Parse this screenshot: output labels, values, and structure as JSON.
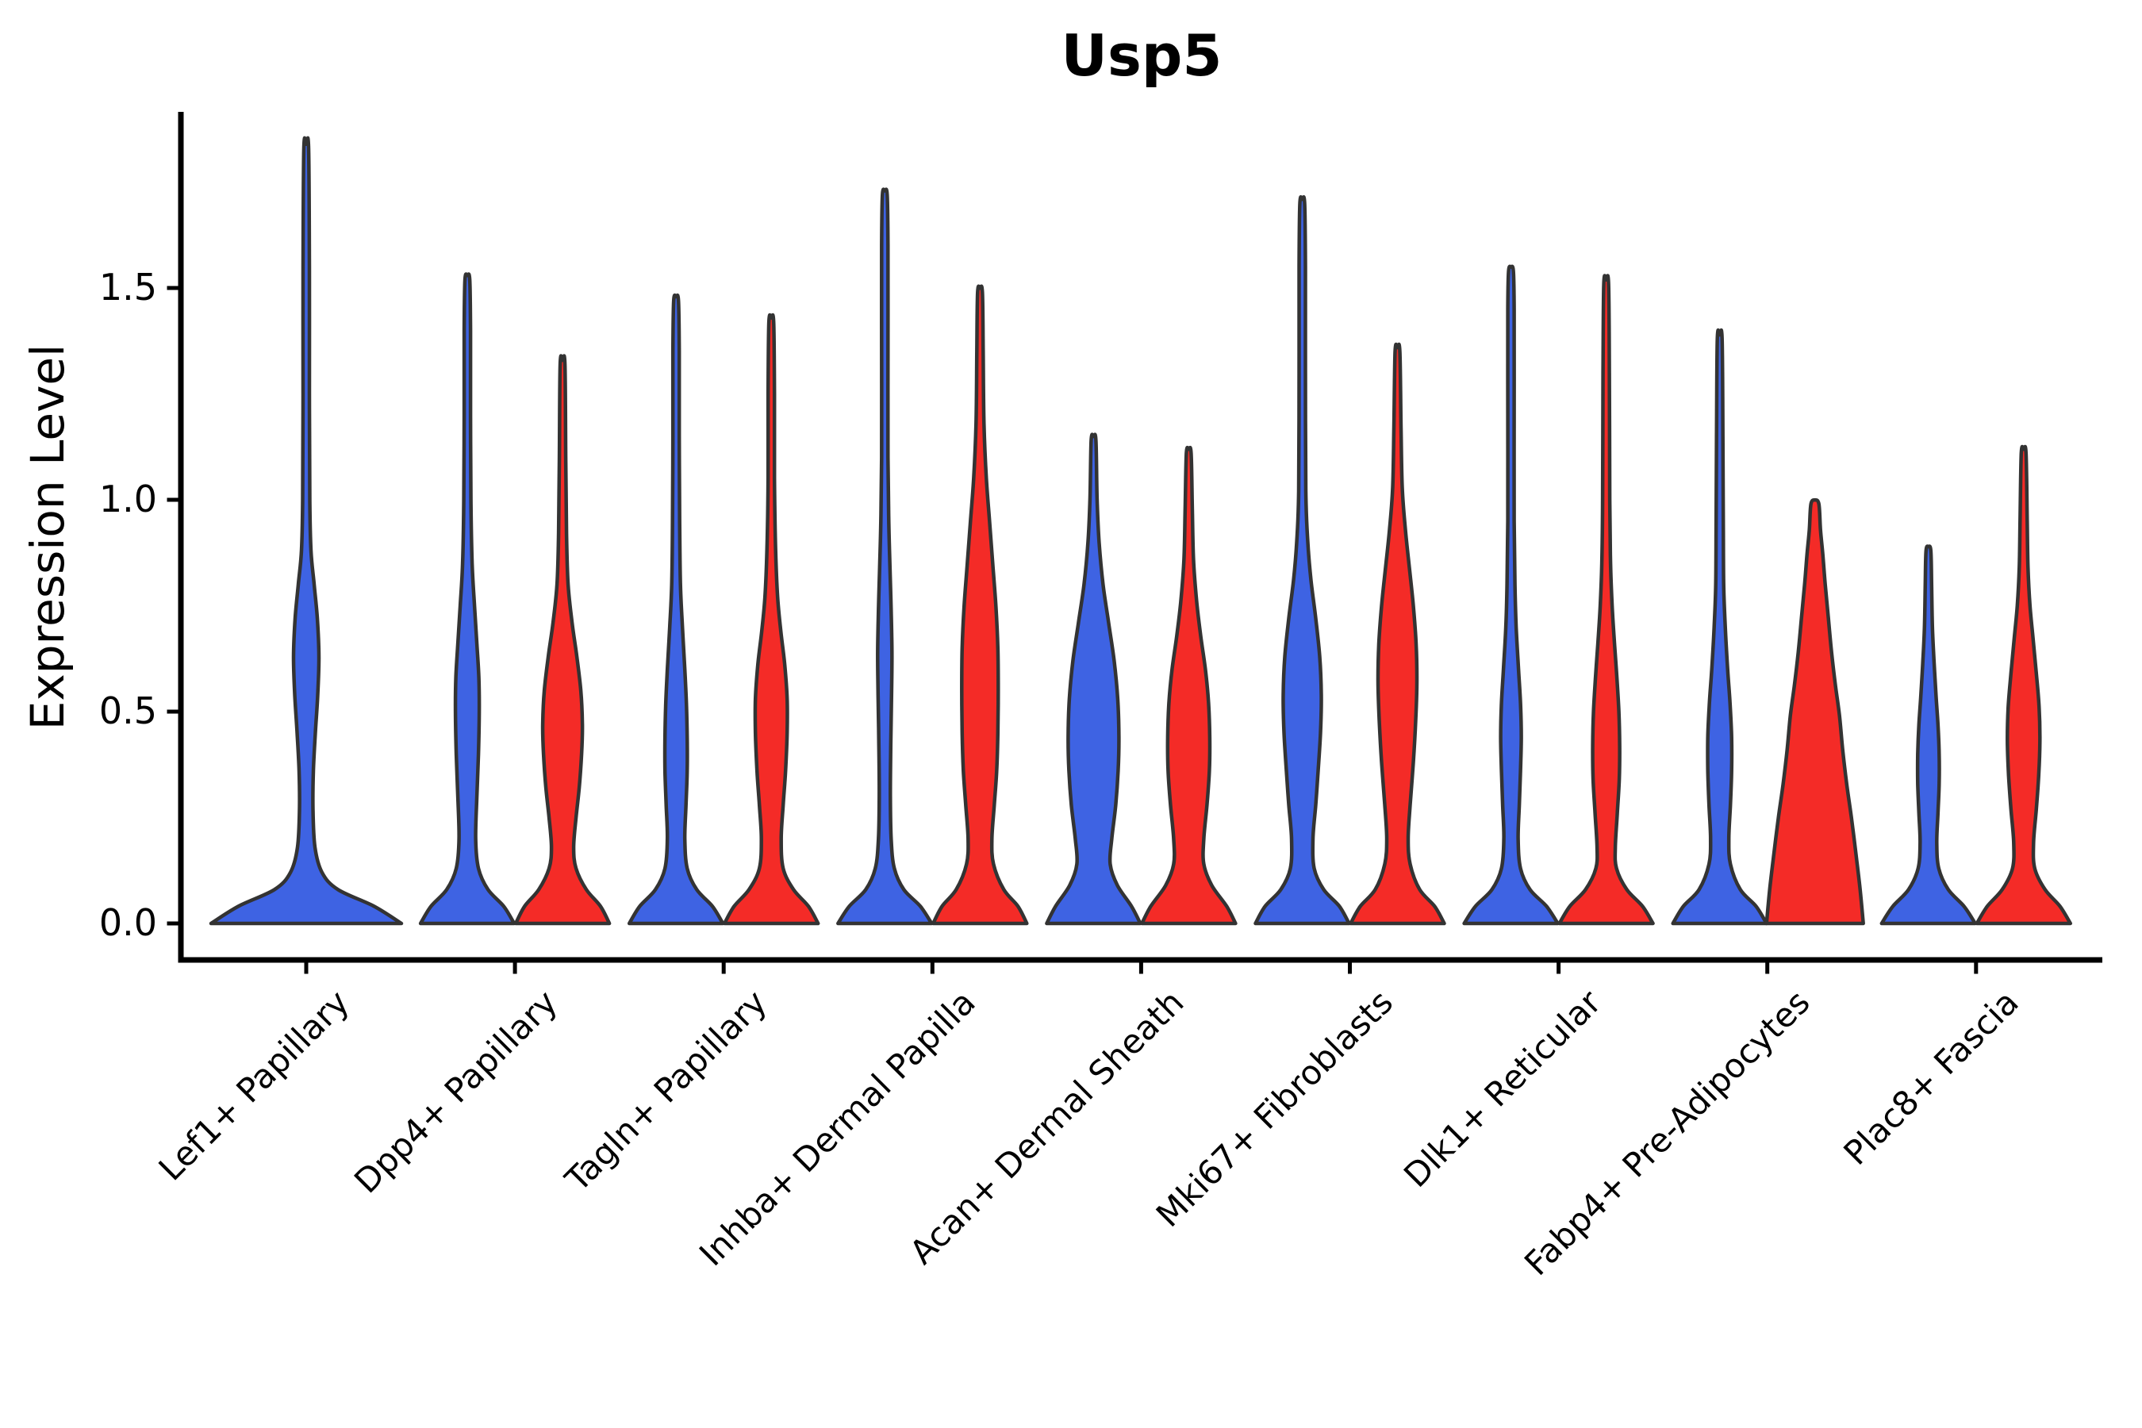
{
  "chart_data": {
    "type": "violin",
    "title": "Usp5",
    "ylabel": "Expression Level",
    "xlabel": "",
    "yticks": [
      "0.0",
      "0.5",
      "1.0",
      "1.5"
    ],
    "ylim": [
      -0.09,
      1.92
    ],
    "grid": false,
    "legend": "none",
    "categories": [
      "Lef1+ Papillary",
      "Dpp4+ Papillary",
      "Tagln+ Papillary",
      "Inhba+ Dermal Papilla",
      "Acan+ Dermal Sheath",
      "Mki67+ Fibroblasts",
      "Dlk1+ Reticular",
      "Fabp4+ Pre-Adipocytes",
      "Plac8+ Fascia"
    ],
    "series": [
      {
        "key": "blue",
        "color": "#3E63E3"
      },
      {
        "key": "red",
        "color": "#F42B27"
      }
    ],
    "outline_color": "#333333",
    "axis_color": "#000000",
    "violins": [
      {
        "category": "Lef1+ Papillary",
        "series": "blue",
        "side": "center",
        "max_expression": 1.83,
        "profile": [
          [
            0,
            120
          ],
          [
            0.04,
            86
          ],
          [
            0.08,
            40
          ],
          [
            0.12,
            20
          ],
          [
            0.18,
            11
          ],
          [
            0.27,
            8.5
          ],
          [
            0.36,
            9
          ],
          [
            0.45,
            11.5
          ],
          [
            0.54,
            14.5
          ],
          [
            0.63,
            16
          ],
          [
            0.72,
            14
          ],
          [
            0.8,
            10
          ],
          [
            0.88,
            6
          ],
          [
            1.0,
            4.5
          ],
          [
            1.25,
            4
          ],
          [
            1.55,
            4
          ],
          [
            1.83,
            3
          ]
        ]
      },
      {
        "category": "Dpp4+ Papillary",
        "series": "blue",
        "side": "left",
        "max_expression": 1.52,
        "profile": [
          [
            0,
            59
          ],
          [
            0.04,
            46
          ],
          [
            0.08,
            26
          ],
          [
            0.13,
            14
          ],
          [
            0.2,
            10.5
          ],
          [
            0.3,
            12
          ],
          [
            0.4,
            14
          ],
          [
            0.5,
            15
          ],
          [
            0.58,
            14.5
          ],
          [
            0.66,
            12
          ],
          [
            0.75,
            9
          ],
          [
            0.85,
            6
          ],
          [
            1.0,
            4.5
          ],
          [
            1.2,
            4
          ],
          [
            1.4,
            4
          ],
          [
            1.52,
            3
          ]
        ]
      },
      {
        "category": "Dpp4+ Papillary",
        "series": "red",
        "side": "right",
        "max_expression": 1.32,
        "profile": [
          [
            0,
            59
          ],
          [
            0.04,
            48
          ],
          [
            0.08,
            30
          ],
          [
            0.13,
            17
          ],
          [
            0.18,
            14
          ],
          [
            0.25,
            17
          ],
          [
            0.32,
            21
          ],
          [
            0.4,
            24
          ],
          [
            0.47,
            25
          ],
          [
            0.55,
            23
          ],
          [
            0.63,
            18
          ],
          [
            0.71,
            12
          ],
          [
            0.8,
            7
          ],
          [
            0.92,
            5
          ],
          [
            1.1,
            4
          ],
          [
            1.32,
            3
          ]
        ]
      },
      {
        "category": "Tagln+ Papillary",
        "series": "blue",
        "side": "left",
        "max_expression": 1.47,
        "profile": [
          [
            0,
            59
          ],
          [
            0.04,
            46
          ],
          [
            0.08,
            26
          ],
          [
            0.13,
            14
          ],
          [
            0.2,
            11
          ],
          [
            0.28,
            12.5
          ],
          [
            0.36,
            14
          ],
          [
            0.44,
            14
          ],
          [
            0.52,
            13
          ],
          [
            0.6,
            11
          ],
          [
            0.7,
            8
          ],
          [
            0.8,
            5.5
          ],
          [
            0.95,
            4.5
          ],
          [
            1.15,
            4
          ],
          [
            1.35,
            4
          ],
          [
            1.47,
            3
          ]
        ]
      },
      {
        "category": "Tagln+ Papillary",
        "series": "red",
        "side": "right",
        "max_expression": 1.42,
        "profile": [
          [
            0,
            59
          ],
          [
            0.04,
            47
          ],
          [
            0.08,
            28
          ],
          [
            0.13,
            15
          ],
          [
            0.2,
            12.5
          ],
          [
            0.28,
            15
          ],
          [
            0.36,
            18
          ],
          [
            0.45,
            20
          ],
          [
            0.53,
            20
          ],
          [
            0.61,
            17
          ],
          [
            0.69,
            12
          ],
          [
            0.77,
            8
          ],
          [
            0.88,
            5.5
          ],
          [
            1.05,
            4
          ],
          [
            1.25,
            4
          ],
          [
            1.42,
            3
          ]
        ]
      },
      {
        "category": "Inhba+ Dermal Papilla",
        "series": "blue",
        "side": "left",
        "max_expression": 1.72,
        "profile": [
          [
            0,
            59
          ],
          [
            0.04,
            45
          ],
          [
            0.08,
            24
          ],
          [
            0.13,
            12
          ],
          [
            0.2,
            8
          ],
          [
            0.3,
            7
          ],
          [
            0.42,
            7.5
          ],
          [
            0.54,
            8.5
          ],
          [
            0.64,
            9
          ],
          [
            0.74,
            8
          ],
          [
            0.84,
            6.5
          ],
          [
            0.95,
            5
          ],
          [
            1.1,
            4
          ],
          [
            1.35,
            4
          ],
          [
            1.6,
            4
          ],
          [
            1.72,
            3
          ]
        ]
      },
      {
        "category": "Inhba+ Dermal Papilla",
        "series": "red",
        "side": "right",
        "max_expression": 1.49,
        "profile": [
          [
            0,
            59
          ],
          [
            0.04,
            48
          ],
          [
            0.08,
            30
          ],
          [
            0.14,
            17
          ],
          [
            0.2,
            15
          ],
          [
            0.28,
            18
          ],
          [
            0.36,
            21
          ],
          [
            0.45,
            22.5
          ],
          [
            0.55,
            23
          ],
          [
            0.65,
            22.5
          ],
          [
            0.75,
            20
          ],
          [
            0.85,
            16
          ],
          [
            0.95,
            12
          ],
          [
            1.05,
            8
          ],
          [
            1.18,
            5
          ],
          [
            1.35,
            4
          ],
          [
            1.49,
            3
          ]
        ]
      },
      {
        "category": "Acan+ Dermal Sheath",
        "series": "blue",
        "side": "left",
        "max_expression": 1.14,
        "profile": [
          [
            0,
            59
          ],
          [
            0.04,
            48
          ],
          [
            0.09,
            30
          ],
          [
            0.14,
            21
          ],
          [
            0.2,
            23
          ],
          [
            0.28,
            28
          ],
          [
            0.36,
            31
          ],
          [
            0.44,
            32
          ],
          [
            0.53,
            30.5
          ],
          [
            0.62,
            26
          ],
          [
            0.71,
            19
          ],
          [
            0.8,
            12
          ],
          [
            0.9,
            7
          ],
          [
            1.0,
            4.5
          ],
          [
            1.14,
            3
          ]
        ]
      },
      {
        "category": "Acan+ Dermal Sheath",
        "series": "red",
        "side": "right",
        "max_expression": 1.11,
        "profile": [
          [
            0,
            59
          ],
          [
            0.04,
            48
          ],
          [
            0.09,
            29
          ],
          [
            0.14,
            19
          ],
          [
            0.2,
            19
          ],
          [
            0.28,
            23
          ],
          [
            0.36,
            26
          ],
          [
            0.44,
            26.5
          ],
          [
            0.52,
            25
          ],
          [
            0.6,
            21
          ],
          [
            0.68,
            15
          ],
          [
            0.76,
            10
          ],
          [
            0.86,
            6
          ],
          [
            0.98,
            4.5
          ],
          [
            1.11,
            3
          ]
        ]
      },
      {
        "category": "Mki67+ Fibroblasts",
        "series": "blue",
        "side": "left",
        "max_expression": 1.7,
        "profile": [
          [
            0,
            59
          ],
          [
            0.04,
            47
          ],
          [
            0.08,
            27
          ],
          [
            0.13,
            15
          ],
          [
            0.2,
            13.5
          ],
          [
            0.28,
            17
          ],
          [
            0.36,
            20
          ],
          [
            0.45,
            23
          ],
          [
            0.54,
            24
          ],
          [
            0.63,
            22
          ],
          [
            0.72,
            17
          ],
          [
            0.81,
            11
          ],
          [
            0.9,
            7
          ],
          [
            1.02,
            4.5
          ],
          [
            1.3,
            4
          ],
          [
            1.55,
            4
          ],
          [
            1.7,
            3
          ]
        ]
      },
      {
        "category": "Mki67+ Fibroblasts",
        "series": "red",
        "side": "right",
        "max_expression": 1.35,
        "profile": [
          [
            0,
            59
          ],
          [
            0.04,
            47
          ],
          [
            0.08,
            28
          ],
          [
            0.14,
            16
          ],
          [
            0.2,
            13.5
          ],
          [
            0.28,
            16
          ],
          [
            0.38,
            20
          ],
          [
            0.48,
            23
          ],
          [
            0.57,
            24.5
          ],
          [
            0.66,
            23.5
          ],
          [
            0.75,
            20
          ],
          [
            0.84,
            15
          ],
          [
            0.93,
            10
          ],
          [
            1.03,
            6
          ],
          [
            1.17,
            4.5
          ],
          [
            1.35,
            3
          ]
        ]
      },
      {
        "category": "Dlk1+ Reticular",
        "series": "blue",
        "side": "left",
        "max_expression": 1.54,
        "profile": [
          [
            0,
            59
          ],
          [
            0.04,
            45
          ],
          [
            0.08,
            24
          ],
          [
            0.13,
            12
          ],
          [
            0.2,
            9
          ],
          [
            0.28,
            10.5
          ],
          [
            0.36,
            12
          ],
          [
            0.44,
            13
          ],
          [
            0.52,
            12
          ],
          [
            0.6,
            9.5
          ],
          [
            0.7,
            6.5
          ],
          [
            0.8,
            5
          ],
          [
            0.95,
            4
          ],
          [
            1.2,
            4
          ],
          [
            1.45,
            4
          ],
          [
            1.54,
            3
          ]
        ]
      },
      {
        "category": "Dlk1+ Reticular",
        "series": "red",
        "side": "right",
        "max_expression": 1.51,
        "profile": [
          [
            0,
            59
          ],
          [
            0.04,
            46
          ],
          [
            0.08,
            26
          ],
          [
            0.13,
            13
          ],
          [
            0.18,
            11.5
          ],
          [
            0.26,
            14
          ],
          [
            0.34,
            16.5
          ],
          [
            0.42,
            17
          ],
          [
            0.5,
            16
          ],
          [
            0.58,
            13.5
          ],
          [
            0.66,
            10.5
          ],
          [
            0.75,
            7.5
          ],
          [
            0.85,
            5.5
          ],
          [
            1.0,
            4.5
          ],
          [
            1.3,
            4
          ],
          [
            1.51,
            3
          ]
        ]
      },
      {
        "category": "Fabp4+ Pre-Adipocytes",
        "series": "blue",
        "side": "left",
        "max_expression": 1.38,
        "profile": [
          [
            0,
            59
          ],
          [
            0.04,
            46
          ],
          [
            0.08,
            26
          ],
          [
            0.14,
            13.5
          ],
          [
            0.2,
            11.5
          ],
          [
            0.28,
            13.5
          ],
          [
            0.36,
            15
          ],
          [
            0.44,
            15
          ],
          [
            0.52,
            13
          ],
          [
            0.6,
            10
          ],
          [
            0.7,
            7
          ],
          [
            0.8,
            5
          ],
          [
            0.95,
            4.5
          ],
          [
            1.15,
            4
          ],
          [
            1.38,
            3
          ]
        ]
      },
      {
        "category": "Fabp4+ Pre-Adipocytes",
        "series": "red",
        "side": "right",
        "max_expression": 0.99,
        "profile": [
          [
            0,
            61
          ],
          [
            0.08,
            57
          ],
          [
            0.16,
            52
          ],
          [
            0.25,
            46
          ],
          [
            0.33,
            40
          ],
          [
            0.41,
            35
          ],
          [
            0.49,
            31
          ],
          [
            0.56,
            26
          ],
          [
            0.64,
            21
          ],
          [
            0.72,
            17
          ],
          [
            0.8,
            13
          ],
          [
            0.87,
            10
          ],
          [
            0.93,
            7
          ],
          [
            0.99,
            5
          ]
        ]
      },
      {
        "category": "Plac8+ Fascia",
        "series": "blue",
        "side": "left",
        "max_expression": 0.88,
        "profile": [
          [
            0,
            59
          ],
          [
            0.04,
            45
          ],
          [
            0.08,
            25
          ],
          [
            0.13,
            13
          ],
          [
            0.19,
            10.5
          ],
          [
            0.26,
            12
          ],
          [
            0.33,
            13.5
          ],
          [
            0.4,
            13.5
          ],
          [
            0.47,
            12
          ],
          [
            0.54,
            9.5
          ],
          [
            0.62,
            7
          ],
          [
            0.7,
            5
          ],
          [
            0.8,
            4
          ],
          [
            0.88,
            3
          ]
        ]
      },
      {
        "category": "Plac8+ Fascia",
        "series": "red",
        "side": "right",
        "max_expression": 1.11,
        "profile": [
          [
            0,
            59
          ],
          [
            0.04,
            46
          ],
          [
            0.08,
            27
          ],
          [
            0.13,
            14
          ],
          [
            0.19,
            12.5
          ],
          [
            0.27,
            16
          ],
          [
            0.35,
            19
          ],
          [
            0.43,
            20.5
          ],
          [
            0.51,
            19.5
          ],
          [
            0.59,
            16
          ],
          [
            0.67,
            12
          ],
          [
            0.75,
            8
          ],
          [
            0.84,
            5.5
          ],
          [
            0.95,
            4.5
          ],
          [
            1.11,
            3
          ]
        ]
      }
    ]
  }
}
